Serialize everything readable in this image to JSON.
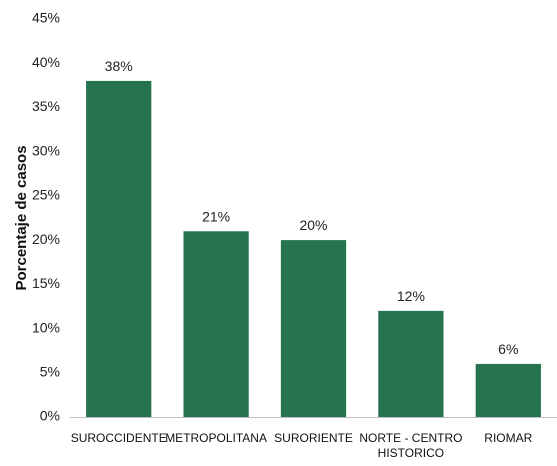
{
  "chart_data": {
    "type": "bar",
    "ylabel": "Porcentaje de casos",
    "xlabel": "",
    "categories": [
      "SUROCCIDENTE",
      "METROPOLITANA",
      "SURORIENTE",
      "NORTE - CENTRO HISTORICO",
      "RIOMAR"
    ],
    "category_lines": [
      [
        "SUROCCIDENTE"
      ],
      [
        "METROPOLITANA"
      ],
      [
        "SURORIENTE"
      ],
      [
        "NORTE - CENTRO",
        "HISTORICO"
      ],
      [
        "RIOMAR"
      ]
    ],
    "values": [
      38,
      21,
      20,
      12,
      6
    ],
    "value_labels": [
      "38%",
      "21%",
      "20%",
      "12%",
      "6%"
    ],
    "y_ticks": [
      "0%",
      "5%",
      "10%",
      "15%",
      "20%",
      "25%",
      "30%",
      "35%",
      "40%",
      "45%"
    ],
    "ylim": [
      0,
      45
    ],
    "grid": false,
    "bar_color": "#267350"
  }
}
